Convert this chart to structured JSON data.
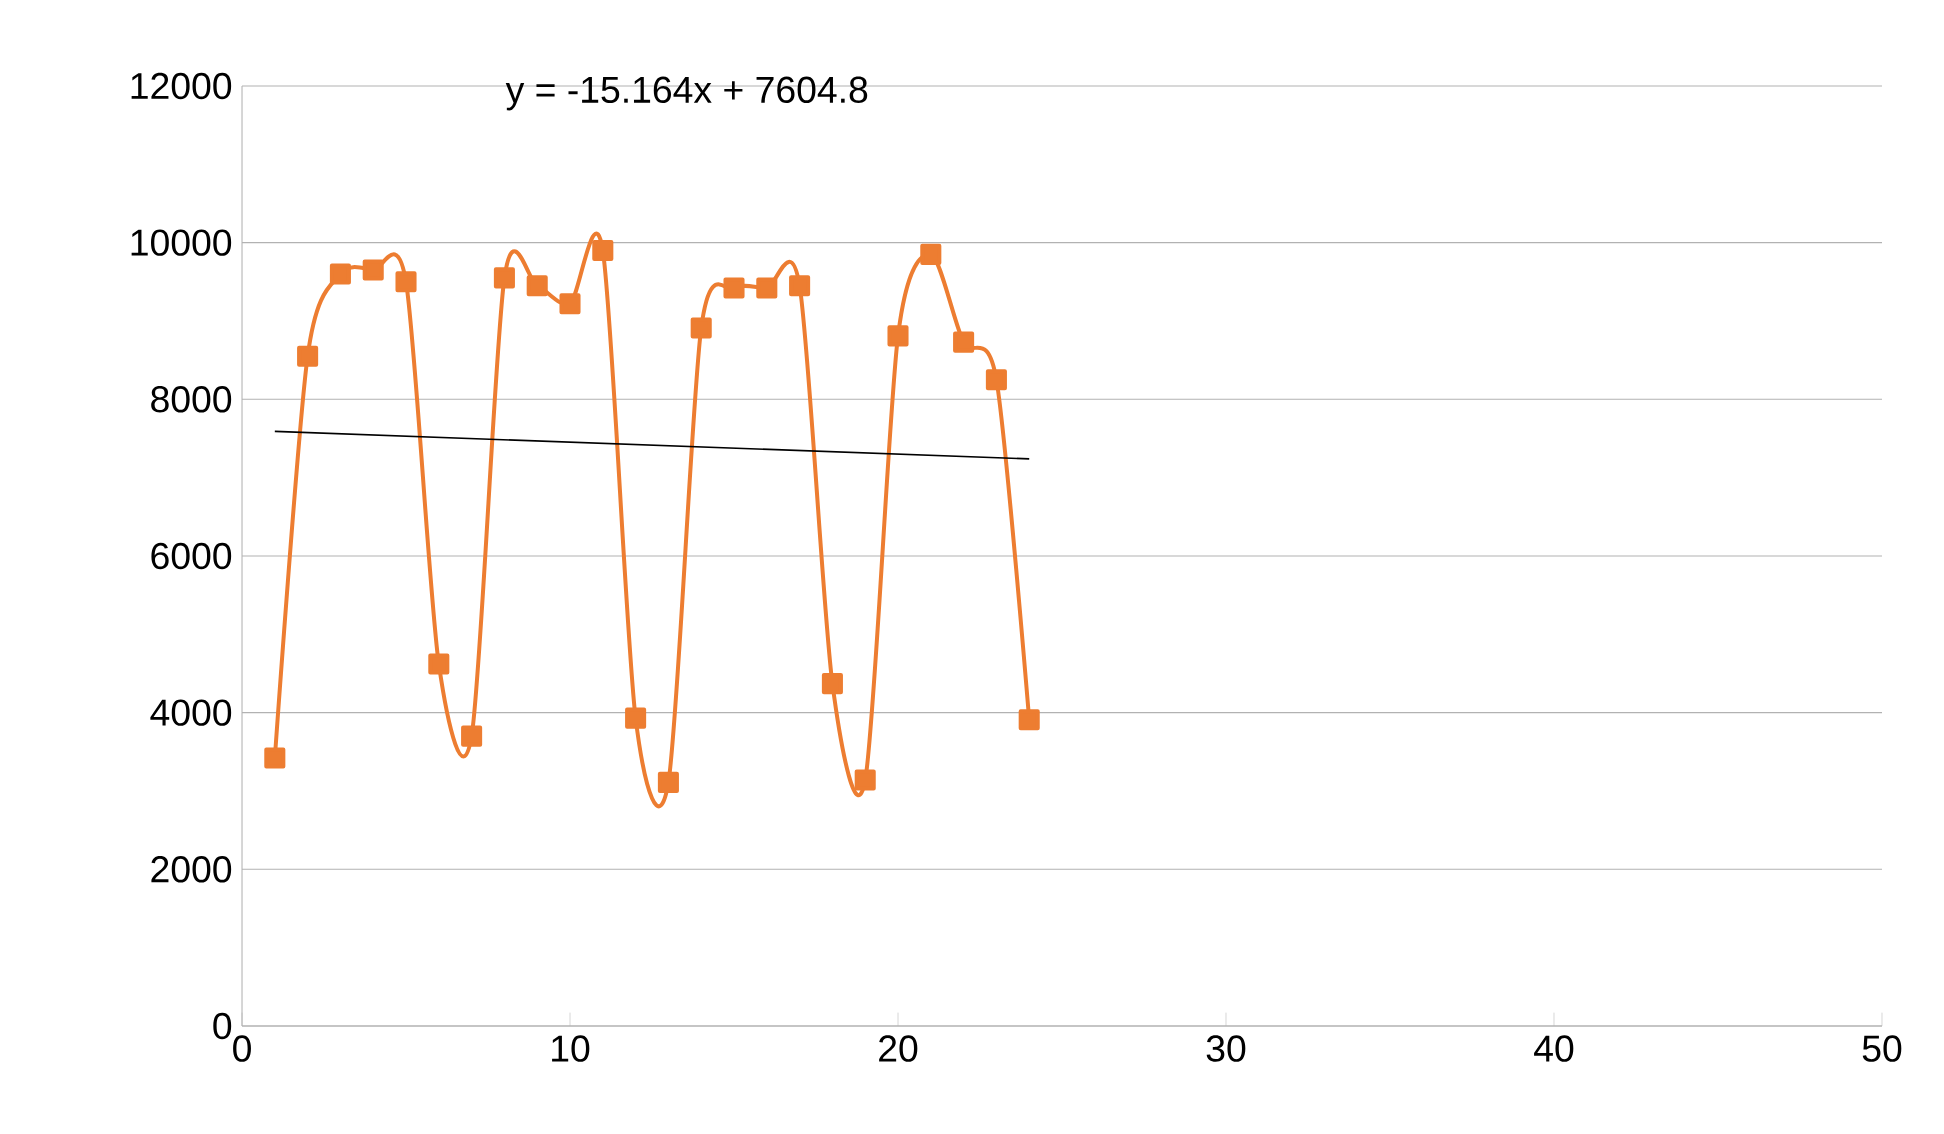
{
  "chart_data": {
    "type": "line",
    "annotations": [
      "y = -15.164x + 7604.8"
    ],
    "xlim": [
      0,
      50
    ],
    "xticks": [
      0,
      10,
      20,
      30,
      40,
      50
    ],
    "ylim": [
      0,
      12000
    ],
    "yticks": [
      0,
      2000,
      4000,
      6000,
      8000,
      10000,
      12000
    ],
    "grid": "y",
    "series": [
      {
        "color": "#ed7d31",
        "marker": "square",
        "x": [
          1,
          2,
          3,
          4,
          5,
          6,
          7,
          8,
          9,
          10,
          11,
          12,
          13,
          14,
          15,
          16,
          17,
          18,
          19,
          20,
          21,
          22,
          23,
          24
        ],
        "values": [
          3420,
          8550,
          9600,
          9650,
          9500,
          4620,
          3700,
          9550,
          9450,
          9220,
          9900,
          3930,
          3110,
          8910,
          9420,
          9420,
          9450,
          4370,
          3140,
          8810,
          9850,
          8730,
          8250,
          3910
        ]
      },
      {
        "color": "#000000",
        "marker": "none",
        "x": [
          1,
          24
        ],
        "values": [
          7590,
          7240
        ]
      }
    ]
  }
}
